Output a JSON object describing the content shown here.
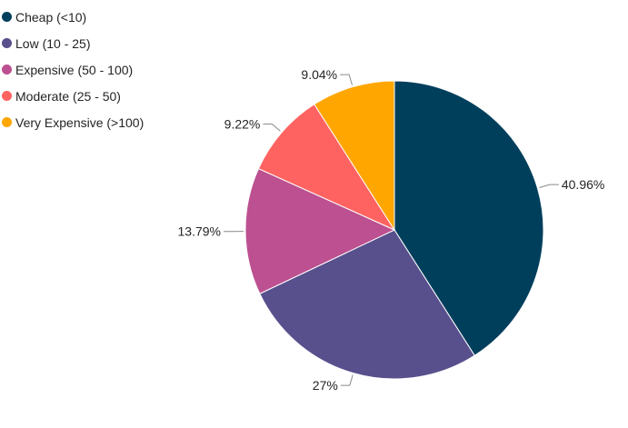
{
  "chart_data": {
    "type": "pie",
    "title": "",
    "legend_position": "top-left",
    "slices": [
      {
        "name": "Cheap (<10)",
        "value": 40.96,
        "label": "40.96%",
        "color": "#003f5c"
      },
      {
        "name": "Low (10 - 25)",
        "value": 27,
        "label": "27%",
        "color": "#58508d"
      },
      {
        "name": "Expensive (50 - 100)",
        "value": 13.79,
        "label": "13.79%",
        "color": "#bc5090"
      },
      {
        "name": "Moderate (25 - 50)",
        "value": 9.22,
        "label": "9.22%",
        "color": "#ff6361"
      },
      {
        "name": "Very Expensive (>100)",
        "value": 9.04,
        "label": "9.04%",
        "color": "#ffa600"
      }
    ]
  }
}
